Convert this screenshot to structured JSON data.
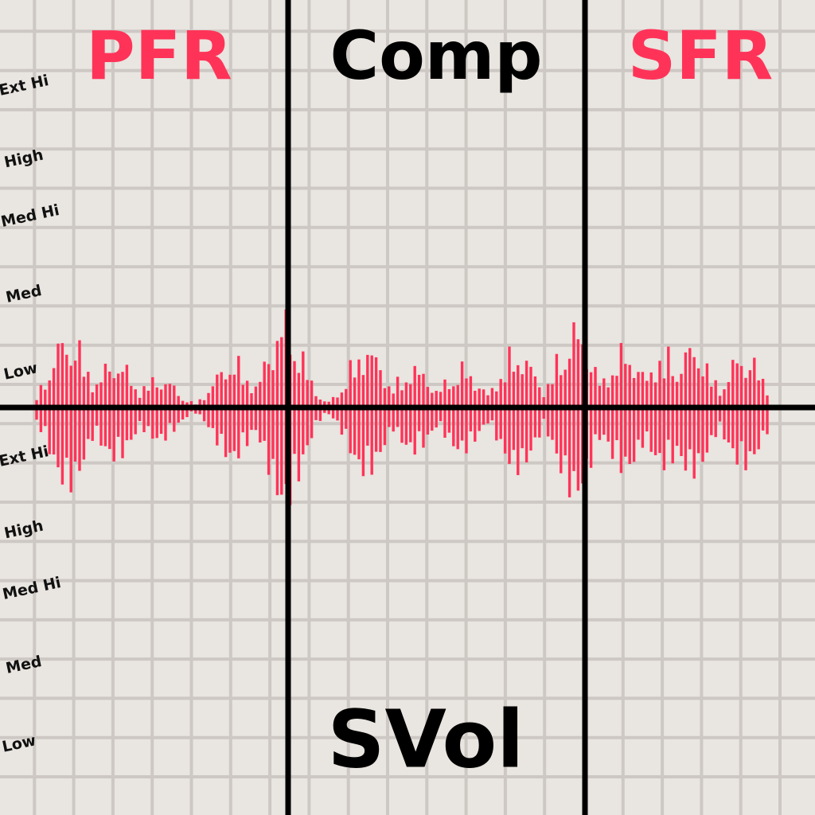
{
  "titles": {
    "left": "PFR",
    "center": "Comp",
    "right": "SFR",
    "bottom": "SVol"
  },
  "levels_upper": [
    "Ext Hi",
    "High",
    "Med Hi",
    "Med",
    "Low"
  ],
  "levels_lower": [
    "Ext Hi",
    "High",
    "Med Hi",
    "Med",
    "Low"
  ]
}
